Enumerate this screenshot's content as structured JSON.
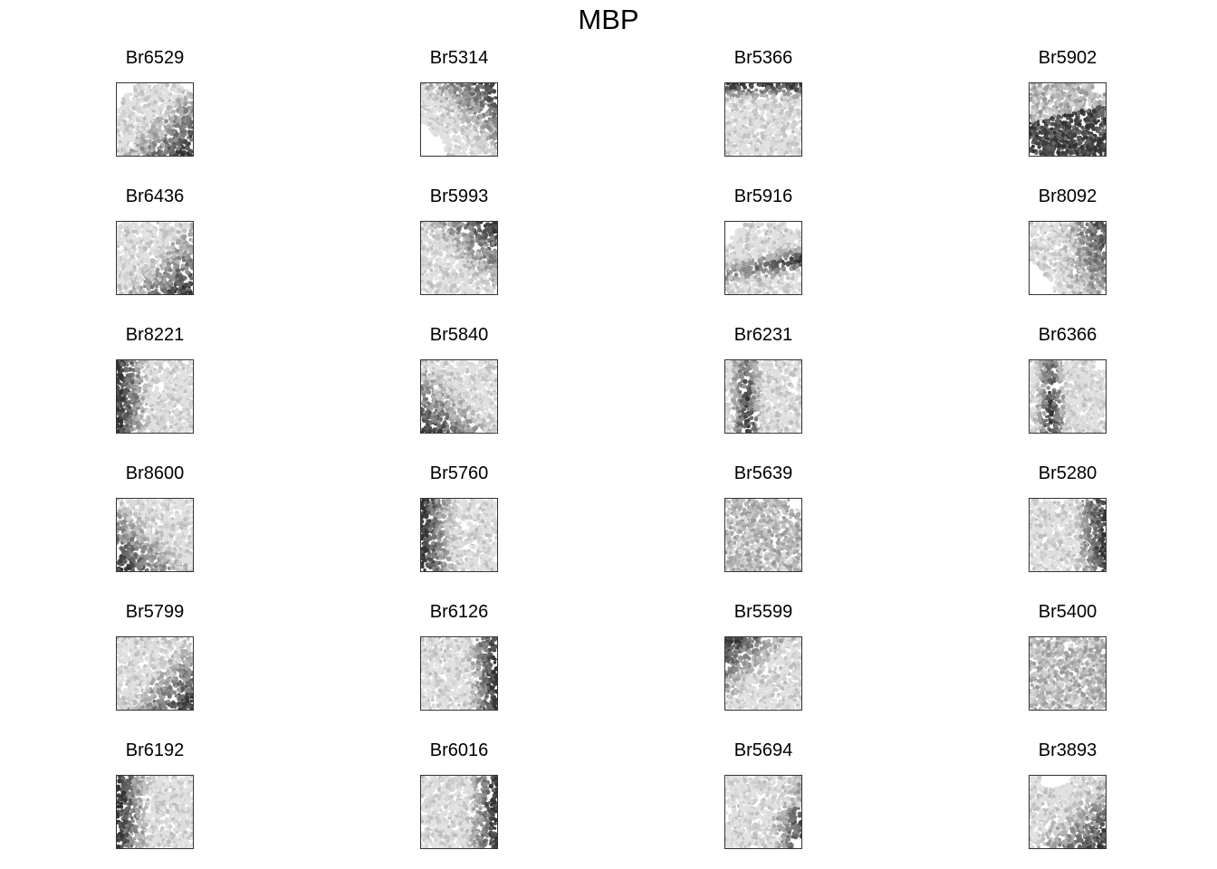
{
  "title": "MBP",
  "panels": [
    {
      "label": "Br6529",
      "pattern": "corner-br",
      "shape": "round-top"
    },
    {
      "label": "Br5314",
      "pattern": "corner-tr",
      "shape": "cut-bl"
    },
    {
      "label": "Br5366",
      "pattern": "band-top",
      "shape": "square"
    },
    {
      "label": "Br5902",
      "pattern": "diag-bottom",
      "shape": "cut-tr"
    },
    {
      "label": "Br6436",
      "pattern": "corner-br",
      "shape": "square"
    },
    {
      "label": "Br5993",
      "pattern": "corner-tr",
      "shape": "cut-bottom"
    },
    {
      "label": "Br5916",
      "pattern": "band-mid",
      "shape": "round-top"
    },
    {
      "label": "Br8092",
      "pattern": "right-top",
      "shape": "cut-bl"
    },
    {
      "label": "Br8221",
      "pattern": "left",
      "shape": "square"
    },
    {
      "label": "Br5840",
      "pattern": "corner-bl",
      "shape": "square"
    },
    {
      "label": "Br6231",
      "pattern": "left-mid",
      "shape": "square"
    },
    {
      "label": "Br6366",
      "pattern": "left-mid",
      "shape": "cut-tr"
    },
    {
      "label": "Br8600",
      "pattern": "corner-bl",
      "shape": "square"
    },
    {
      "label": "Br5760",
      "pattern": "left",
      "shape": "square"
    },
    {
      "label": "Br5639",
      "pattern": "light",
      "shape": "cut-tr"
    },
    {
      "label": "Br5280",
      "pattern": "right",
      "shape": "square"
    },
    {
      "label": "Br5799",
      "pattern": "corner-br",
      "shape": "square"
    },
    {
      "label": "Br6126",
      "pattern": "right",
      "shape": "square"
    },
    {
      "label": "Br5599",
      "pattern": "corner-tl",
      "shape": "square"
    },
    {
      "label": "Br5400",
      "pattern": "light",
      "shape": "square"
    },
    {
      "label": "Br6192",
      "pattern": "left",
      "shape": "square"
    },
    {
      "label": "Br6016",
      "pattern": "right",
      "shape": "square"
    },
    {
      "label": "Br5694",
      "pattern": "right-low",
      "shape": "cut-br"
    },
    {
      "label": "Br3893",
      "pattern": "corner-br",
      "shape": "cut-top"
    }
  ]
}
